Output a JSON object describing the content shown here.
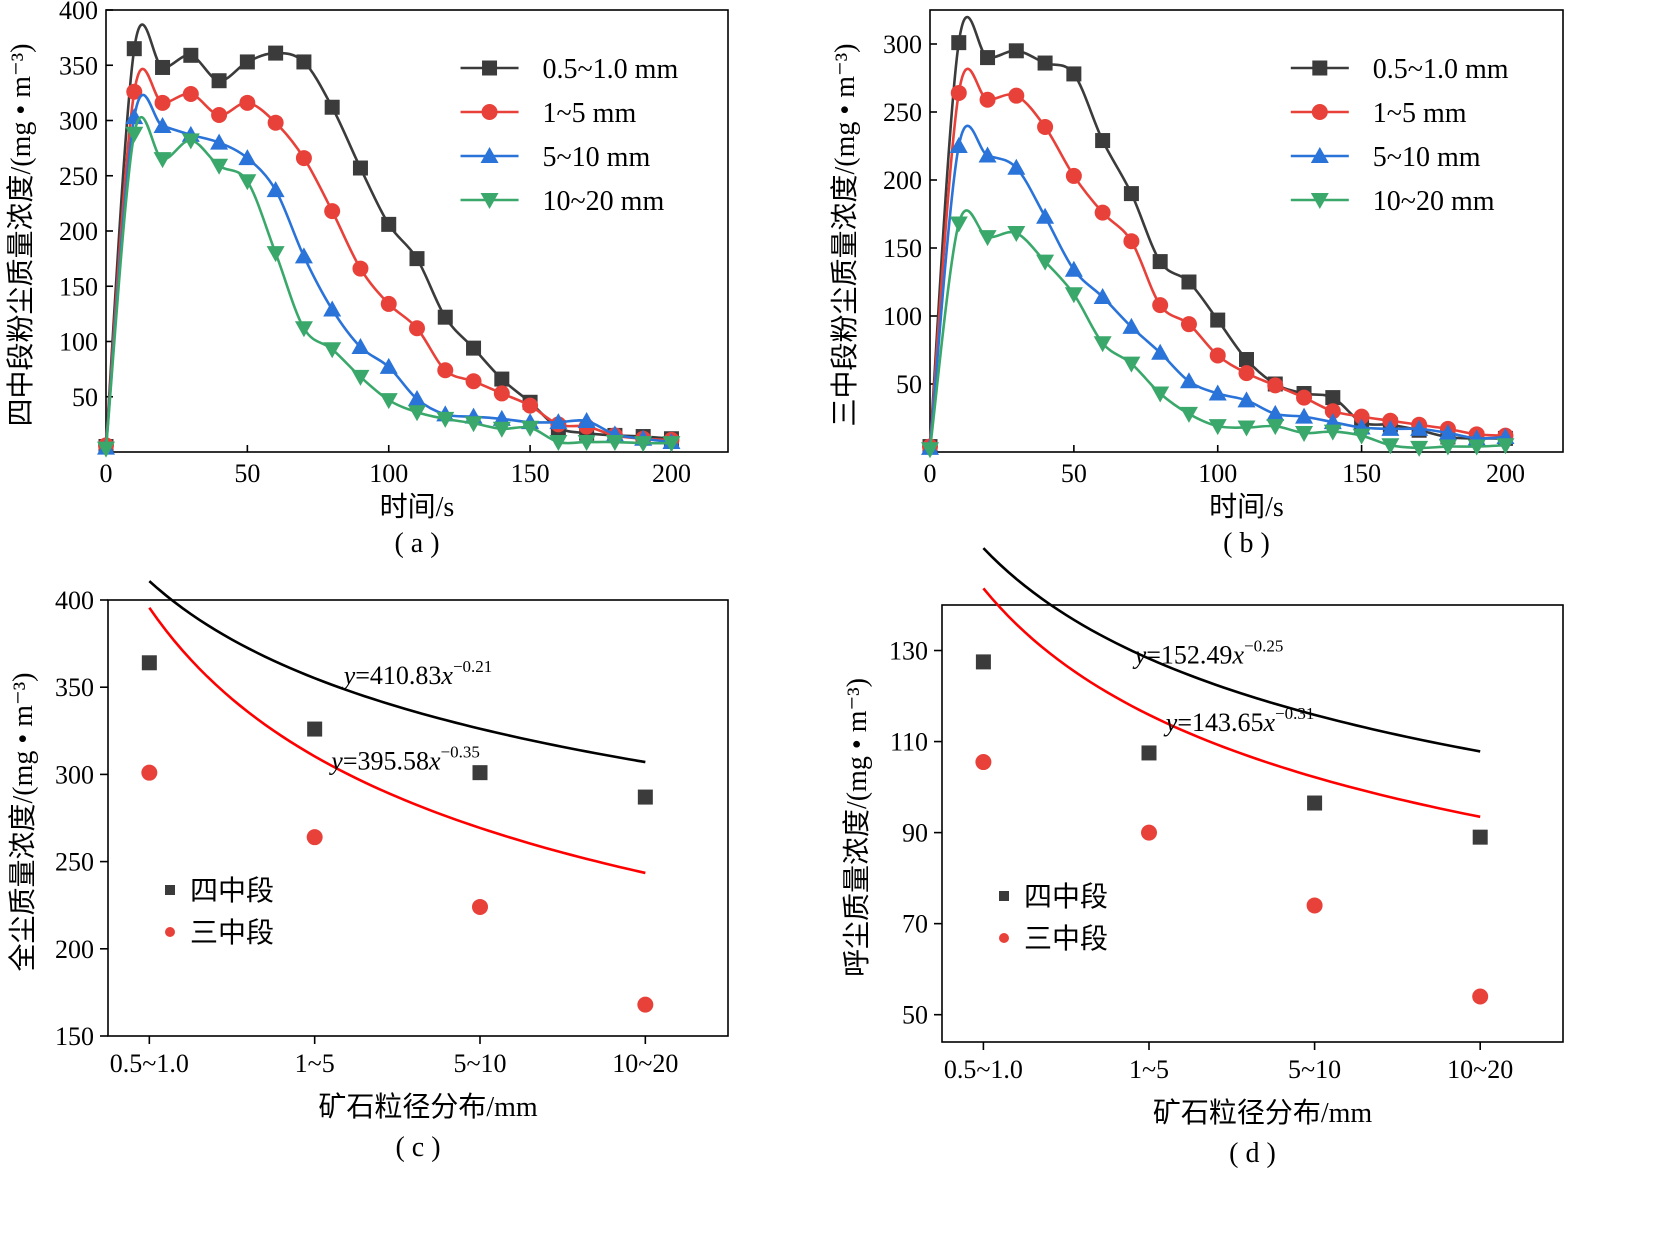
{
  "colors": {
    "black": "#3b3b3b",
    "red": "#e8413a",
    "blue": "#2a73d8",
    "green": "#3aa86b",
    "fit_black": "#000000",
    "fit_red": "#ff0000"
  },
  "chart_data": [
    {
      "id": "a",
      "type": "line",
      "caption": "( a )",
      "xlabel": "时间/s",
      "ylabel": "四中段粉尘质量浓度/(mg • m⁻³)",
      "xlim": [
        0,
        220
      ],
      "ylim": [
        0,
        400
      ],
      "xticks": [
        0,
        50,
        100,
        150,
        200
      ],
      "yticks": [
        50,
        100,
        150,
        200,
        250,
        300,
        350,
        400
      ],
      "legend_position": "top-right",
      "x": [
        0,
        10,
        20,
        30,
        40,
        50,
        60,
        70,
        80,
        90,
        100,
        110,
        120,
        130,
        140,
        150,
        160,
        170,
        180,
        190,
        200
      ],
      "series": [
        {
          "name": "0.5~1.0 mm",
          "marker": "square",
          "color": "black",
          "values": [
            5,
            365,
            348,
            359,
            336,
            353,
            361,
            353,
            312,
            257,
            206,
            175,
            122,
            94,
            66,
            45,
            22,
            17,
            15,
            14,
            12
          ]
        },
        {
          "name": "1~5 mm",
          "marker": "circle",
          "color": "red",
          "values": [
            6,
            326,
            316,
            324,
            305,
            316,
            298,
            266,
            218,
            166,
            134,
            112,
            74,
            64,
            53,
            42,
            25,
            23,
            15,
            12,
            11
          ]
        },
        {
          "name": "5~10 mm",
          "marker": "triangle-up",
          "color": "blue",
          "values": [
            4,
            303,
            295,
            287,
            280,
            266,
            237,
            177,
            129,
            95,
            77,
            48,
            34,
            32,
            30,
            27,
            27,
            28,
            16,
            12,
            9
          ]
        },
        {
          "name": "10~20 mm",
          "marker": "triangle-down",
          "color": "green",
          "values": [
            3,
            288,
            265,
            282,
            259,
            245,
            180,
            112,
            93,
            68,
            47,
            36,
            30,
            26,
            21,
            22,
            9,
            9,
            9,
            8,
            8
          ]
        }
      ]
    },
    {
      "id": "b",
      "type": "line",
      "caption": "( b )",
      "xlabel": "时间/s",
      "ylabel": "三中段粉尘质量浓度/(mg • m⁻³)",
      "xlim": [
        0,
        220
      ],
      "ylim": [
        0,
        325
      ],
      "xticks": [
        0,
        50,
        100,
        150,
        200
      ],
      "yticks": [
        50,
        100,
        150,
        200,
        250,
        300
      ],
      "legend_position": "top-right",
      "x": [
        0,
        10,
        20,
        30,
        40,
        50,
        60,
        70,
        80,
        90,
        100,
        110,
        120,
        130,
        140,
        150,
        160,
        170,
        180,
        190,
        200
      ],
      "series": [
        {
          "name": "0.5~1.0 mm",
          "marker": "square",
          "color": "black",
          "values": [
            4,
            301,
            290,
            295,
            286,
            278,
            229,
            190,
            140,
            125,
            97,
            68,
            50,
            43,
            40,
            22,
            20,
            16,
            11,
            10,
            10
          ]
        },
        {
          "name": "1~5 mm",
          "marker": "circle",
          "color": "red",
          "values": [
            4,
            264,
            259,
            262,
            239,
            203,
            176,
            155,
            108,
            94,
            71,
            58,
            49,
            40,
            30,
            26,
            23,
            20,
            17,
            13,
            12
          ]
        },
        {
          "name": "5~10 mm",
          "marker": "triangle-up",
          "color": "blue",
          "values": [
            3,
            225,
            218,
            209,
            173,
            134,
            114,
            92,
            73,
            52,
            43,
            38,
            28,
            26,
            22,
            18,
            17,
            17,
            14,
            10,
            11
          ]
        },
        {
          "name": "10~20 mm",
          "marker": "triangle-down",
          "color": "green",
          "values": [
            2,
            168,
            158,
            161,
            140,
            116,
            80,
            65,
            43,
            28,
            19,
            18,
            19,
            14,
            15,
            12,
            5,
            3,
            4,
            4,
            5
          ]
        }
      ]
    },
    {
      "id": "c",
      "type": "scatter",
      "caption": "( c )",
      "xlabel": "矿石粒径分布/mm",
      "ylabel": "全尘质量浓度/(mg • m⁻³)",
      "categories": [
        "0.5~1.0",
        "1~5",
        "5~10",
        "10~20"
      ],
      "ylim": [
        150,
        400
      ],
      "yticks": [
        150,
        200,
        250,
        300,
        350,
        400
      ],
      "legend_position": "bottom-left",
      "series": [
        {
          "name": "四中段",
          "marker": "square",
          "color": "black",
          "values": [
            364,
            326,
            301,
            287
          ],
          "fit": {
            "a": 410.83,
            "b": -0.21,
            "x_from": 1,
            "x_to": 4
          }
        },
        {
          "name": "三中段",
          "marker": "circle",
          "color": "red",
          "values": [
            301,
            264,
            224,
            168
          ],
          "fit": {
            "a": 395.58,
            "b": -0.35,
            "x_from": 1,
            "x_to": 4
          }
        }
      ],
      "equations": [
        {
          "lhs": "y",
          "coef": "=410.83",
          "var": "x",
          "exp": "−0.21"
        },
        {
          "lhs": "y",
          "coef": "=395.58",
          "var": "x",
          "exp": "−0.35"
        }
      ]
    },
    {
      "id": "d",
      "type": "scatter",
      "caption": "( d )",
      "xlabel": "矿石粒径分布/mm",
      "ylabel": "呼尘质量浓度/(mg • m⁻³)",
      "categories": [
        "0.5~1.0",
        "1~5",
        "5~10",
        "10~20"
      ],
      "ylim": [
        44,
        140
      ],
      "yticks": [
        50,
        70,
        90,
        110,
        130
      ],
      "legend_position": "bottom-left",
      "series": [
        {
          "name": "四中段",
          "marker": "square",
          "color": "black",
          "values": [
            127.5,
            107.5,
            96.5,
            89
          ],
          "fit": {
            "a": 152.49,
            "b": -0.25,
            "x_from": 1,
            "x_to": 4
          }
        },
        {
          "name": "三中段",
          "marker": "circle",
          "color": "red",
          "values": [
            105.5,
            90,
            74,
            54
          ],
          "fit": {
            "a": 143.65,
            "b": -0.31,
            "x_from": 1,
            "x_to": 4
          }
        }
      ],
      "equations": [
        {
          "lhs": "y",
          "coef": "=152.49",
          "var": "x",
          "exp": "−0.25"
        },
        {
          "lhs": "y",
          "coef": "=143.65",
          "var": "x",
          "exp": "−0.31"
        }
      ]
    }
  ]
}
